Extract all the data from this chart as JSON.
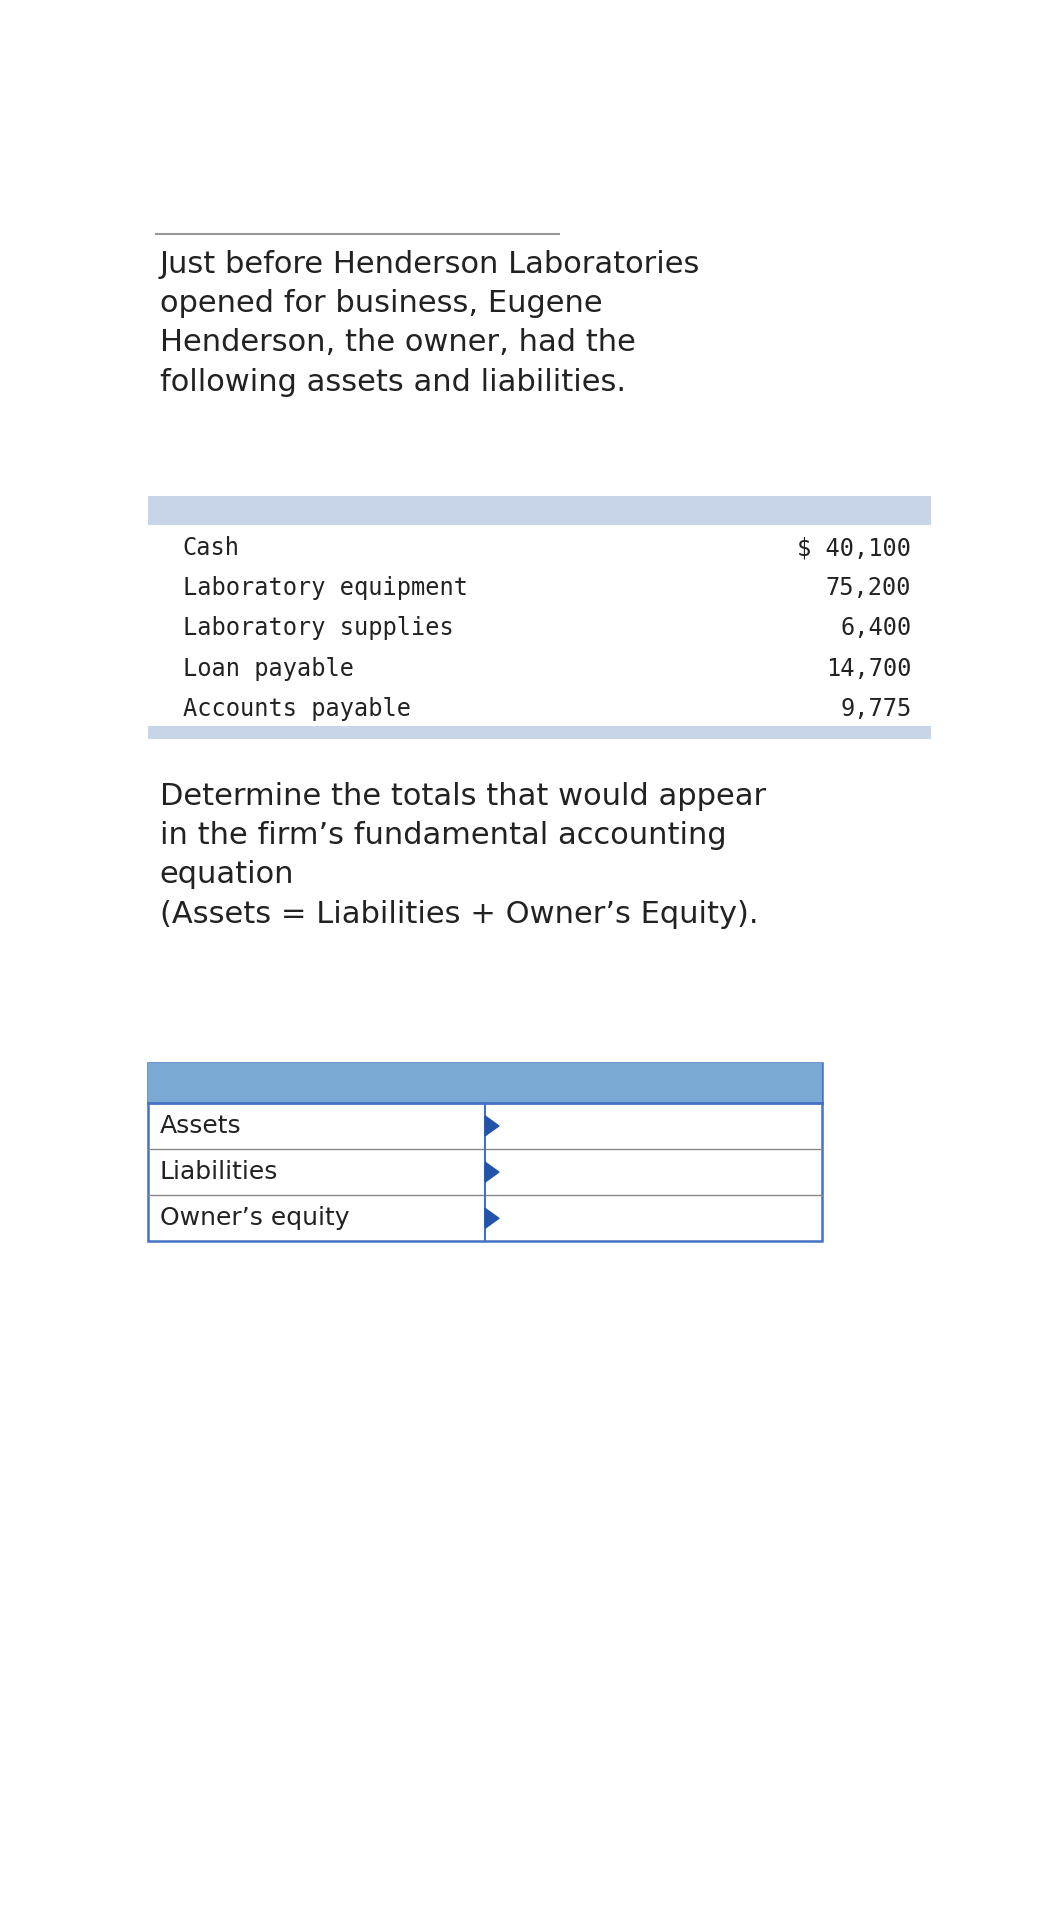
{
  "bg_color": "#ffffff",
  "intro_text": "Just before Henderson Laboratories\nopened for business, Eugene\nHenderson, the owner, had the\nfollowing assets and liabilities.",
  "table1_header_color": "#c8d4e8",
  "table1_rows": [
    [
      "Cash",
      "$ 40,100"
    ],
    [
      "Laboratory equipment",
      "75,200"
    ],
    [
      "Laboratory supplies",
      "6,400"
    ],
    [
      "Loan payable",
      "14,700"
    ],
    [
      "Accounts payable",
      "9,775"
    ]
  ],
  "table1_border_color": "#8899bb",
  "middle_text": "Determine the totals that would appear\nin the firm’s fundamental accounting\nequation\n(Assets = Liabilities + Owner’s Equity).",
  "table2_header_color": "#7aaad4",
  "table2_rows": [
    "Assets",
    "Liabilities",
    "Owner’s equity"
  ],
  "table2_border_color": "#4472c4",
  "arrow_color": "#2255aa",
  "font_color": "#222222",
  "mono_font": "DejaVu Sans Mono",
  "sans_font": "DejaVu Sans",
  "intro_fontsize": 22,
  "table1_fontsize": 17,
  "middle_fontsize": 22,
  "table2_fontsize": 18
}
